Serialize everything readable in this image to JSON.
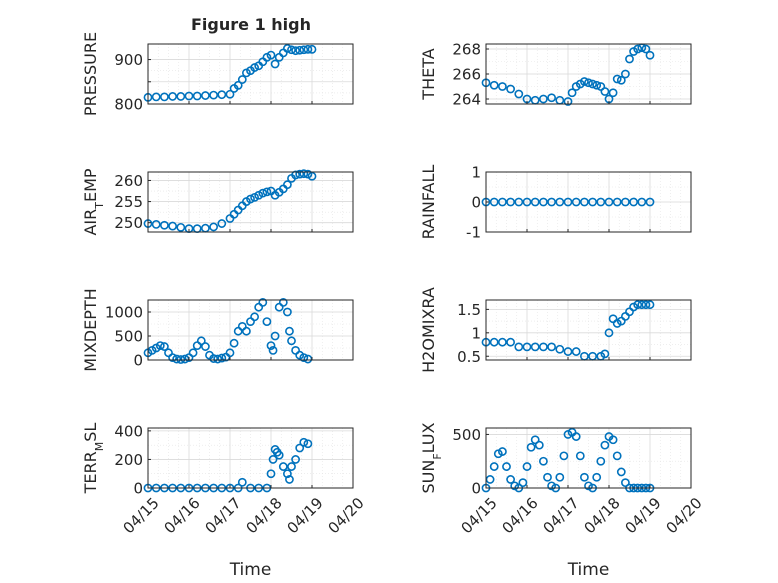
{
  "figure_title": "Figure 1 high",
  "chart_data": [
    {
      "type": "scatter",
      "ylabel": "PRESSURE",
      "title": "Figure 1 high",
      "yticks": [
        800,
        850,
        900
      ],
      "yticklabels": [
        "800",
        "",
        "900"
      ],
      "ylim": [
        800,
        935
      ],
      "xlim": [
        "04/15",
        "04/20"
      ],
      "xticklabels": [],
      "grid": true,
      "color": "#0072BD",
      "x": [
        15.0,
        15.2,
        15.4,
        15.6,
        15.8,
        16.0,
        16.2,
        16.4,
        16.6,
        16.8,
        17.0,
        17.1,
        17.2,
        17.3,
        17.4,
        17.5,
        17.6,
        17.7,
        17.8,
        17.9,
        18.0,
        18.1,
        18.2,
        18.3,
        18.4,
        18.5,
        18.6,
        18.7,
        18.8,
        18.9,
        19.0
      ],
      "y": [
        815,
        816,
        816,
        817,
        817,
        818,
        818,
        819,
        820,
        821,
        822,
        835,
        842,
        855,
        870,
        875,
        882,
        886,
        895,
        905,
        910,
        890,
        905,
        915,
        925,
        922,
        920,
        921,
        922,
        923,
        923
      ]
    },
    {
      "type": "scatter",
      "ylabel": "THETA",
      "yticks": [
        264,
        266,
        268
      ],
      "yticklabels": [
        "264",
        "266",
        "268"
      ],
      "ylim": [
        263.6,
        268.4
      ],
      "xlim": [
        "04/15",
        "04/20"
      ],
      "xticklabels": [],
      "grid": true,
      "color": "#0072BD",
      "x": [
        15.0,
        15.2,
        15.4,
        15.6,
        15.8,
        16.0,
        16.2,
        16.4,
        16.6,
        16.8,
        17.0,
        17.1,
        17.2,
        17.3,
        17.4,
        17.5,
        17.6,
        17.7,
        17.8,
        17.9,
        18.0,
        18.1,
        18.2,
        18.3,
        18.4,
        18.5,
        18.6,
        18.7,
        18.8,
        18.9,
        19.0
      ],
      "y": [
        265.3,
        265.1,
        265.0,
        264.8,
        264.4,
        264.0,
        263.9,
        264.0,
        264.1,
        263.9,
        263.8,
        264.5,
        265.0,
        265.2,
        265.4,
        265.3,
        265.2,
        265.1,
        265.0,
        264.6,
        264.0,
        264.5,
        265.6,
        265.5,
        266.0,
        267.2,
        267.8,
        268.0,
        268.1,
        268.0,
        267.5
      ]
    },
    {
      "type": "scatter",
      "ylabel": "AIR_TEMP",
      "yticks": [
        250,
        255,
        260
      ],
      "yticklabels": [
        "250",
        "255",
        "260"
      ],
      "ylim": [
        247.8,
        262.0
      ],
      "xlim": [
        "04/15",
        "04/20"
      ],
      "xticklabels": [],
      "grid": true,
      "color": "#0072BD",
      "x": [
        15.0,
        15.2,
        15.4,
        15.6,
        15.8,
        16.0,
        16.2,
        16.4,
        16.6,
        16.8,
        17.0,
        17.1,
        17.2,
        17.3,
        17.4,
        17.5,
        17.6,
        17.7,
        17.8,
        17.9,
        18.0,
        18.1,
        18.2,
        18.3,
        18.4,
        18.5,
        18.6,
        18.7,
        18.8,
        18.9,
        19.0
      ],
      "y": [
        249.8,
        249.6,
        249.4,
        249.2,
        248.9,
        248.6,
        248.6,
        248.7,
        249.0,
        249.8,
        251.0,
        252.0,
        253.0,
        254.0,
        255.0,
        255.6,
        256.0,
        256.5,
        257.0,
        257.3,
        257.5,
        256.5,
        257.2,
        258.0,
        259.0,
        260.5,
        261.3,
        261.5,
        261.6,
        261.5,
        261.0
      ]
    },
    {
      "type": "scatter",
      "ylabel": "RAINFALL",
      "yticks": [
        -1,
        0,
        1
      ],
      "yticklabels": [
        "-1",
        "0",
        "1"
      ],
      "ylim": [
        -1,
        1
      ],
      "xlim": [
        "04/15",
        "04/20"
      ],
      "xticklabels": [],
      "grid": true,
      "color": "#0072BD",
      "x": [
        15.0,
        15.2,
        15.4,
        15.6,
        15.8,
        16.0,
        16.2,
        16.4,
        16.6,
        16.8,
        17.0,
        17.2,
        17.4,
        17.6,
        17.8,
        18.0,
        18.2,
        18.4,
        18.6,
        18.8,
        19.0
      ],
      "y": [
        0,
        0,
        0,
        0,
        0,
        0,
        0,
        0,
        0,
        0,
        0,
        0,
        0,
        0,
        0,
        0,
        0,
        0,
        0,
        0,
        0
      ]
    },
    {
      "type": "scatter",
      "ylabel": "MIXDEPTH",
      "yticks": [
        0,
        500,
        1000
      ],
      "yticklabels": [
        "0",
        "500",
        "1000"
      ],
      "ylim": [
        0,
        1250
      ],
      "xlim": [
        "04/15",
        "04/20"
      ],
      "xticklabels": [],
      "grid": true,
      "color": "#0072BD",
      "x": [
        15.0,
        15.1,
        15.2,
        15.3,
        15.4,
        15.5,
        15.6,
        15.7,
        15.8,
        15.9,
        16.0,
        16.1,
        16.2,
        16.3,
        16.4,
        16.5,
        16.6,
        16.7,
        16.8,
        16.9,
        17.0,
        17.1,
        17.2,
        17.3,
        17.4,
        17.5,
        17.6,
        17.7,
        17.8,
        17.9,
        18.0,
        18.05,
        18.1,
        18.2,
        18.3,
        18.4,
        18.45,
        18.5,
        18.6,
        18.7,
        18.8,
        18.9
      ],
      "y": [
        150,
        200,
        250,
        300,
        280,
        150,
        50,
        20,
        10,
        20,
        50,
        150,
        300,
        400,
        280,
        100,
        30,
        20,
        40,
        60,
        150,
        350,
        600,
        700,
        600,
        800,
        900,
        1100,
        1200,
        800,
        300,
        200,
        500,
        1100,
        1200,
        1000,
        600,
        400,
        200,
        100,
        50,
        20
      ]
    },
    {
      "type": "scatter",
      "ylabel": "H2OMIXRA",
      "yticks": [
        0.5,
        1,
        1.5
      ],
      "yticklabels": [
        "0.5",
        "1",
        "1.5"
      ],
      "ylim": [
        0.42,
        1.7
      ],
      "xlim": [
        "04/15",
        "04/20"
      ],
      "xticklabels": [],
      "grid": true,
      "color": "#0072BD",
      "x": [
        15.0,
        15.2,
        15.4,
        15.6,
        15.8,
        16.0,
        16.2,
        16.4,
        16.6,
        16.8,
        17.0,
        17.2,
        17.4,
        17.6,
        17.8,
        17.9,
        18.0,
        18.1,
        18.2,
        18.3,
        18.4,
        18.5,
        18.6,
        18.7,
        18.8,
        18.9,
        19.0
      ],
      "y": [
        0.8,
        0.8,
        0.8,
        0.8,
        0.7,
        0.7,
        0.7,
        0.7,
        0.7,
        0.65,
        0.6,
        0.6,
        0.5,
        0.5,
        0.5,
        0.55,
        1.0,
        1.3,
        1.2,
        1.25,
        1.35,
        1.45,
        1.55,
        1.6,
        1.6,
        1.6,
        1.6
      ]
    },
    {
      "type": "scatter",
      "ylabel": "TERR_MSL",
      "yticks": [
        0,
        200,
        400
      ],
      "yticklabels": [
        "0",
        "200",
        "400"
      ],
      "ylim": [
        0,
        420
      ],
      "xlim": [
        "04/15",
        "04/20"
      ],
      "xticks": [
        "04/15",
        "04/16",
        "04/17",
        "04/18",
        "04/19",
        "04/20"
      ],
      "xticklabels": [
        "04/15",
        "04/16",
        "04/17",
        "04/18",
        "04/19",
        "04/20"
      ],
      "xlabel": "Time",
      "grid": true,
      "color": "#0072BD",
      "x": [
        15.0,
        15.2,
        15.4,
        15.6,
        15.8,
        16.0,
        16.2,
        16.4,
        16.6,
        16.8,
        17.0,
        17.2,
        17.3,
        17.5,
        17.7,
        17.9,
        18.0,
        18.05,
        18.1,
        18.15,
        18.2,
        18.3,
        18.4,
        18.45,
        18.5,
        18.6,
        18.7,
        18.8,
        18.9
      ],
      "y": [
        0,
        0,
        0,
        0,
        0,
        0,
        0,
        0,
        0,
        0,
        0,
        0,
        40,
        0,
        0,
        0,
        100,
        200,
        270,
        250,
        230,
        150,
        100,
        60,
        150,
        200,
        280,
        320,
        310
      ]
    },
    {
      "type": "scatter",
      "ylabel": "SUN_FLUX",
      "yticks": [
        0,
        500
      ],
      "yticklabels": [
        "0",
        "500"
      ],
      "ylim": [
        0,
        560
      ],
      "xlim": [
        "04/15",
        "04/20"
      ],
      "xticks": [
        "04/15",
        "04/16",
        "04/17",
        "04/18",
        "04/19",
        "04/20"
      ],
      "xticklabels": [
        "04/15",
        "04/16",
        "04/17",
        "04/18",
        "04/19",
        "04/20"
      ],
      "xlabel": "Time",
      "grid": true,
      "color": "#0072BD",
      "x": [
        15.0,
        15.1,
        15.2,
        15.3,
        15.4,
        15.5,
        15.6,
        15.7,
        15.8,
        15.9,
        16.0,
        16.1,
        16.2,
        16.3,
        16.4,
        16.5,
        16.6,
        16.7,
        16.8,
        16.9,
        17.0,
        17.1,
        17.2,
        17.3,
        17.4,
        17.5,
        17.6,
        17.7,
        17.8,
        17.9,
        18.0,
        18.1,
        18.2,
        18.3,
        18.4,
        18.5,
        18.6,
        18.7,
        18.8,
        18.9,
        19.0
      ],
      "y": [
        0,
        80,
        200,
        320,
        340,
        200,
        80,
        20,
        0,
        50,
        200,
        380,
        450,
        400,
        250,
        100,
        20,
        0,
        100,
        300,
        500,
        520,
        480,
        300,
        100,
        20,
        0,
        100,
        250,
        400,
        480,
        450,
        300,
        150,
        50,
        0,
        0,
        0,
        0,
        0,
        0
      ]
    }
  ]
}
